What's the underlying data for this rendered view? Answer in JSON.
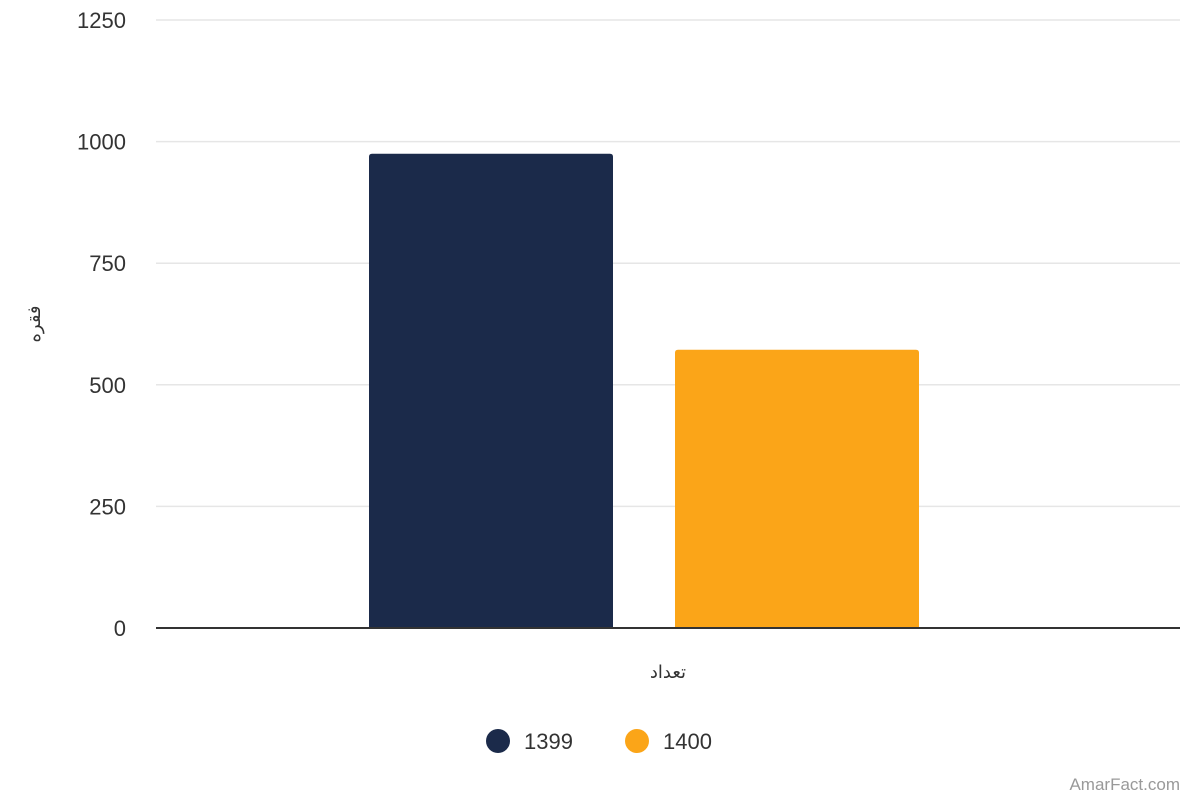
{
  "chart_data": {
    "type": "bar",
    "categories": [
      "تعداد"
    ],
    "series": [
      {
        "name": "1399",
        "values": [
          975
        ],
        "color": "#1b2a4a"
      },
      {
        "name": "1400",
        "values": [
          572
        ],
        "color": "#fba518"
      }
    ],
    "title": "",
    "xlabel": "تعداد",
    "ylabel": "فقره",
    "ylim": [
      0,
      1250
    ],
    "yticks": [
      0,
      250,
      500,
      750,
      1000,
      1250
    ],
    "grid": true,
    "legend": "bottom-center"
  },
  "credit": "AmarFact.com"
}
